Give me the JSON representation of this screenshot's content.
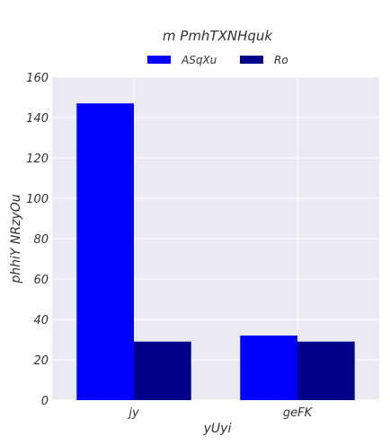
{
  "chart_data": {
    "type": "bar",
    "title": "m PmhTXNHquk",
    "xlabel": "yUyi",
    "ylabel": "phhiY NRzyOu",
    "categories": [
      "jy",
      "geFK"
    ],
    "series": [
      {
        "name": "ASqXu",
        "values": [
          147,
          32
        ],
        "color": "#0000ff"
      },
      {
        "name": "Ro",
        "values": [
          29,
          29
        ],
        "color": "#00008b"
      }
    ],
    "ylim": [
      0,
      160
    ],
    "yticks": [
      0,
      20,
      40,
      60,
      80,
      100,
      120,
      140,
      160
    ],
    "grid": true,
    "legend_position": "top-center",
    "background": "#eaeaf2"
  }
}
